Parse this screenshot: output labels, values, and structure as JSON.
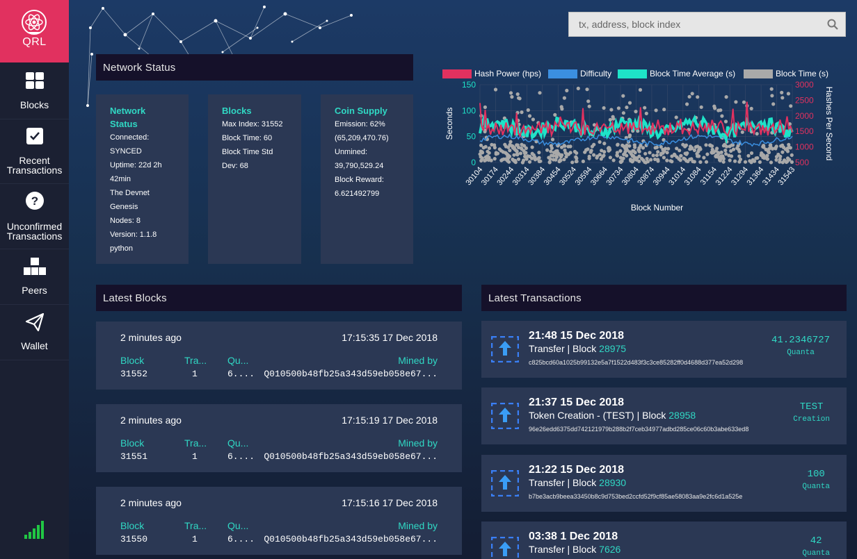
{
  "sidebar": {
    "logo": "QRL",
    "items": [
      {
        "label": "Blocks",
        "icon": "blocks-grid-icon"
      },
      {
        "label": "Recent Transactions",
        "icon": "checkbox-icon"
      },
      {
        "label": "Unconfirmed Transactions",
        "icon": "question-icon"
      },
      {
        "label": "Peers",
        "icon": "peers-boxes-icon"
      },
      {
        "label": "Wallet",
        "icon": "paper-plane-icon"
      }
    ],
    "status_icon": "signal-bars-icon"
  },
  "search": {
    "placeholder": "tx, address, block index",
    "icon": "search-icon"
  },
  "network_status": {
    "header": "Network Status",
    "cards": [
      {
        "title": "Network Status",
        "lines": [
          "Connected:",
          "SYNCED",
          "Uptime: 22d 2h",
          "42min",
          "The Devnet",
          "Genesis",
          "Nodes: 8",
          "Version: 1.1.8",
          "python"
        ]
      },
      {
        "title": "Blocks",
        "lines": [
          "Max Index: 31552",
          "Block Time: 60",
          "Block Time Std",
          "Dev: 68"
        ]
      },
      {
        "title": "Coin Supply",
        "lines": [
          "Emission: 62%",
          "(65,209,470.76)",
          "Unmined:",
          "39,790,529.24",
          "Block Reward:",
          "6.621492799"
        ]
      }
    ]
  },
  "chart_data": {
    "type": "line",
    "legend": [
      {
        "name": "Hash Power (hps)",
        "color": "#e1315f"
      },
      {
        "name": "Difficulty",
        "color": "#3b8fe0"
      },
      {
        "name": "Block Time Average (s)",
        "color": "#1ee3c8"
      },
      {
        "name": "Block Time (s)",
        "color": "#a9a9a9"
      }
    ],
    "legend_position": "top",
    "xlabel": "Block Number",
    "ylabel_left": "Seconds",
    "ylabel_right": "Hashes Per Second",
    "x_ticks": [
      "30104",
      "30174",
      "30244",
      "30314",
      "30384",
      "30454",
      "30524",
      "30594",
      "30664",
      "30734",
      "30804",
      "30874",
      "30944",
      "31014",
      "31084",
      "31154",
      "31224",
      "31294",
      "31364",
      "31434",
      "31543"
    ],
    "y_left_ticks": [
      "150",
      "100",
      "50",
      "0"
    ],
    "y_right_ticks": [
      "3000",
      "2500",
      "2000",
      "1500",
      "1000",
      "500"
    ],
    "xlim": [
      30104,
      31552
    ],
    "ylim_left": [
      0,
      150
    ],
    "ylim_right": [
      500,
      3000
    ],
    "grid": true,
    "note_series": "approximate"
  },
  "latest_blocks": {
    "header": "Latest Blocks",
    "labels": {
      "block": "Block",
      "tx": "Tra...",
      "quanta": "Qu...",
      "mined": "Mined by"
    },
    "rows": [
      {
        "ago": "2 minutes ago",
        "time": "17:15:35 17 Dec 2018",
        "block": "31552",
        "tx": "1",
        "quanta": "6....",
        "miner": "Q010500b48fb25a343d59eb058e67..."
      },
      {
        "ago": "2 minutes ago",
        "time": "17:15:19 17 Dec 2018",
        "block": "31551",
        "tx": "1",
        "quanta": "6....",
        "miner": "Q010500b48fb25a343d59eb058e67..."
      },
      {
        "ago": "2 minutes ago",
        "time": "17:15:16 17 Dec 2018",
        "block": "31550",
        "tx": "1",
        "quanta": "6....",
        "miner": "Q010500b48fb25a343d59eb058e67..."
      }
    ]
  },
  "latest_transactions": {
    "header": "Latest Transactions",
    "rows": [
      {
        "date": "21:48 15 Dec 2018",
        "type": "Transfer | Block ",
        "block": "28975",
        "hash": "c825bcd60a1025b99132e5a7f1522d483f3c3ce85282ff0d4688d377ea52d298",
        "amount": "41.2346727",
        "unit": "Quanta"
      },
      {
        "date": "21:37 15 Dec 2018",
        "type": "Token Creation - (TEST) | Block ",
        "block": "28958",
        "hash": "96e26edd6375dd742121979b288b2f7ceb34977adbd285ce06c60b3abe633ed8",
        "amount": "TEST",
        "unit": "Creation"
      },
      {
        "date": "21:22 15 Dec 2018",
        "type": "Transfer | Block ",
        "block": "28930",
        "hash": "b7be3acb9beea33450b8c9d753bed2ccfd52f9cf85ae58083aa9e2fc6d1a525e",
        "amount": "100",
        "unit": "Quanta"
      },
      {
        "date": "03:38 1 Dec 2018",
        "type": "Transfer | Block ",
        "block": "7626",
        "hash": "",
        "amount": "42",
        "unit": "Quanta"
      }
    ]
  }
}
